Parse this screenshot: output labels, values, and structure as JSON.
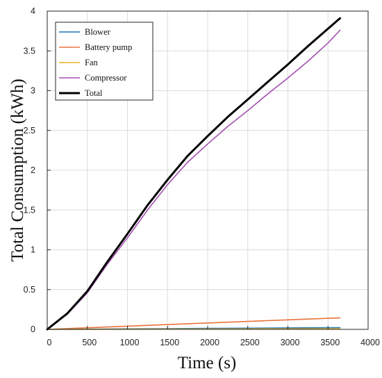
{
  "chart_data": {
    "type": "line",
    "title": "",
    "xlabel": "Time (s)",
    "ylabel": "Total Consumption (kWh)",
    "xlim": [
      0,
      4000
    ],
    "ylim": [
      0,
      4
    ],
    "xticks": [
      0,
      500,
      1000,
      1500,
      2000,
      2500,
      3000,
      3500,
      4000
    ],
    "xtick_labels": [
      "0",
      "500",
      "1000",
      "1500",
      "2000",
      "2500",
      "3000",
      "3500",
      "4000"
    ],
    "yticks": [
      0,
      0.5,
      1,
      1.5,
      2,
      2.5,
      3,
      3.5,
      4
    ],
    "ytick_labels": [
      "0",
      "0.5",
      "1",
      "1.5",
      "2",
      "2.5",
      "3",
      "3.5",
      "4"
    ],
    "grid": true,
    "legend_position": "top-left",
    "series": [
      {
        "name": "Blower",
        "color": "#1f77b4",
        "x": [
          0,
          500,
          1000,
          1500,
          2000,
          2500,
          3000,
          3650
        ],
        "y": [
          0,
          0.003,
          0.006,
          0.009,
          0.012,
          0.015,
          0.018,
          0.022
        ]
      },
      {
        "name": "Battery pump",
        "color": "#e8733a",
        "x": [
          0,
          500,
          1000,
          1500,
          2000,
          2500,
          3000,
          3650
        ],
        "y": [
          0,
          0.02,
          0.04,
          0.06,
          0.08,
          0.1,
          0.12,
          0.145
        ]
      },
      {
        "name": "Fan",
        "color": "#edb120",
        "x": [
          0,
          500,
          1000,
          1500,
          2000,
          2500,
          3000,
          3650
        ],
        "y": [
          0,
          0.001,
          0.002,
          0.003,
          0.004,
          0.005,
          0.006,
          0.007
        ]
      },
      {
        "name": "Compressor",
        "color": "#a34fb0",
        "x": [
          0,
          250,
          500,
          750,
          1000,
          1250,
          1500,
          1750,
          2000,
          2250,
          2500,
          2750,
          3000,
          3250,
          3500,
          3650
        ],
        "y": [
          0,
          0.19,
          0.46,
          0.82,
          1.15,
          1.5,
          1.82,
          2.1,
          2.33,
          2.55,
          2.75,
          2.96,
          3.16,
          3.37,
          3.6,
          3.76
        ]
      },
      {
        "name": "Total",
        "color": "#000000",
        "x": [
          0,
          250,
          500,
          750,
          1000,
          1250,
          1500,
          1750,
          2000,
          2250,
          2500,
          2750,
          3000,
          3250,
          3500,
          3650
        ],
        "y": [
          0,
          0.2,
          0.48,
          0.85,
          1.2,
          1.56,
          1.88,
          2.18,
          2.43,
          2.67,
          2.89,
          3.11,
          3.33,
          3.56,
          3.78,
          3.91
        ]
      }
    ]
  }
}
